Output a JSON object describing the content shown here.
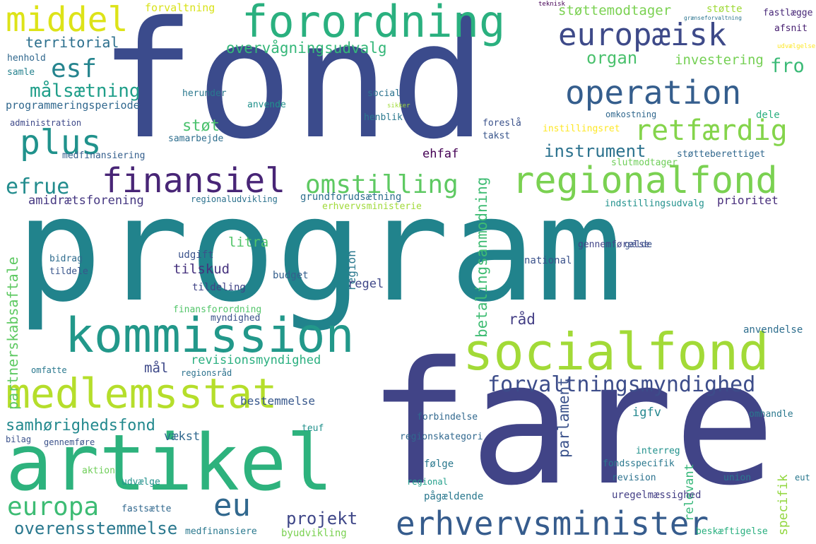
{
  "words": [
    {
      "text": "program",
      "color": "#21838c"
    },
    {
      "text": "fond",
      "color": "#3b4b8c"
    },
    {
      "text": "fare",
      "color": "#414487"
    },
    {
      "text": "artikel",
      "color": "#2db27d"
    },
    {
      "text": "socialfond",
      "color": "#a2da37"
    },
    {
      "text": "kommission",
      "color": "#22988a"
    },
    {
      "text": "forordning",
      "color": "#2ab07f"
    },
    {
      "text": "regionalfond",
      "color": "#7ad151"
    },
    {
      "text": "medlemsstat",
      "color": "#b5de2b"
    },
    {
      "text": "operation",
      "color": "#355e8d"
    },
    {
      "text": "europæisk",
      "color": "#3e4a89"
    },
    {
      "text": "erhvervsminister",
      "color": "#365c8d"
    },
    {
      "text": "finansiel",
      "color": "#482576"
    },
    {
      "text": "omstilling",
      "color": "#5ec962"
    },
    {
      "text": "retfærdig",
      "color": "#84d44b"
    },
    {
      "text": "plus",
      "color": "#20928c"
    },
    {
      "text": "middel",
      "color": "#dde318"
    },
    {
      "text": "eu",
      "color": "#31688e"
    },
    {
      "text": "forvaltningsmyndighed",
      "color": "#3d4d8a"
    },
    {
      "text": "europa",
      "color": "#3dbc74"
    },
    {
      "text": "esf",
      "color": "#25848e"
    },
    {
      "text": "efrue",
      "color": "#228c8d"
    },
    {
      "text": "målsætning",
      "color": "#1f9e89"
    },
    {
      "text": "overvågningsudvalg",
      "color": "#35b779"
    },
    {
      "text": "overensstemmelse",
      "color": "#2a788e"
    },
    {
      "text": "samhørighedsfond",
      "color": "#23898e"
    },
    {
      "text": "instrument",
      "color": "#2c728e"
    },
    {
      "text": "territorial",
      "color": "#2d708e"
    },
    {
      "text": "organ",
      "color": "#4ac16d"
    },
    {
      "text": "investering",
      "color": "#75d054"
    },
    {
      "text": "fro",
      "color": "#3aba76"
    },
    {
      "text": "projekt",
      "color": "#3f4788"
    },
    {
      "text": "partnerskabsaftale",
      "color": "#5ec962"
    },
    {
      "text": "betalingsanmodning",
      "color": "#3fbc73"
    },
    {
      "text": "revisionsmyndighed",
      "color": "#29af7f"
    },
    {
      "text": "støttemodtager",
      "color": "#7ad151"
    },
    {
      "text": "programmeringsperiode",
      "color": "#31688e"
    },
    {
      "text": "amidrætsforening",
      "color": "#453781"
    },
    {
      "text": "støt",
      "color": "#4ac16d"
    },
    {
      "text": "mål",
      "color": "#3e4989"
    },
    {
      "text": "grundforudsætning",
      "color": "#2e6f8e"
    },
    {
      "text": "prioritet",
      "color": "#472d7b"
    },
    {
      "text": "parlament",
      "color": "#3b528b"
    },
    {
      "text": "ehfaf",
      "color": "#440154"
    },
    {
      "text": "råd",
      "color": "#433e85"
    },
    {
      "text": "region",
      "color": "#2a788e"
    },
    {
      "text": "tilskud",
      "color": "#46327e"
    },
    {
      "text": "litra",
      "color": "#52c569"
    },
    {
      "text": "relevant",
      "color": "#35b779"
    },
    {
      "text": "specifik",
      "color": "#93d741"
    },
    {
      "text": "forvaltning",
      "color": "#d8e219"
    },
    {
      "text": "støtte",
      "color": "#a0da39"
    },
    {
      "text": "fastlægge",
      "color": "#482878"
    },
    {
      "text": "afsnit",
      "color": "#482071"
    },
    {
      "text": "teknisk",
      "color": "#440154"
    },
    {
      "text": "grænseforvaltning",
      "color": "#2b748e"
    },
    {
      "text": "udvælgelse",
      "color": "#fde725"
    },
    {
      "text": "henhold",
      "color": "#31688e"
    },
    {
      "text": "samle",
      "color": "#26828e"
    },
    {
      "text": "administration",
      "color": "#3e4989"
    },
    {
      "text": "medfinansiering",
      "color": "#355f8d"
    },
    {
      "text": "regel",
      "color": "#3f4788"
    },
    {
      "text": "national",
      "color": "#3b528b"
    },
    {
      "text": "anvendelse",
      "color": "#2e6e8e"
    },
    {
      "text": "bestemmelse",
      "color": "#38588c"
    },
    {
      "text": "igfv",
      "color": "#24878e"
    },
    {
      "text": "vækst",
      "color": "#31688e"
    },
    {
      "text": "budget",
      "color": "#355f8d"
    },
    {
      "text": "udgift",
      "color": "#3b528b"
    },
    {
      "text": "tildeling",
      "color": "#414487"
    },
    {
      "text": "bidrag",
      "color": "#2f6c8e"
    },
    {
      "text": "tildele",
      "color": "#39568c"
    },
    {
      "text": "anvende",
      "color": "#21918c"
    },
    {
      "text": "herunder",
      "color": "#2a788e"
    },
    {
      "text": "social",
      "color": "#2c728e"
    },
    {
      "text": "samarbejde",
      "color": "#2e6e8e"
    },
    {
      "text": "henblik",
      "color": "#2a788e"
    },
    {
      "text": "takst",
      "color": "#39568c"
    },
    {
      "text": "foreslå",
      "color": "#3b528b"
    },
    {
      "text": "omkostning",
      "color": "#31688e"
    },
    {
      "text": "dele",
      "color": "#29af7f"
    },
    {
      "text": "instillingsret",
      "color": "#fde725"
    },
    {
      "text": "støtteberettiget",
      "color": "#31688e"
    },
    {
      "text": "slutmodtager",
      "color": "#6ece58"
    },
    {
      "text": "indstillingsudvalg",
      "color": "#21918c"
    },
    {
      "text": "erhvervsministerie",
      "color": "#a0da39"
    },
    {
      "text": "regionaludvikling",
      "color": "#2c728e"
    },
    {
      "text": "finansforordning",
      "color": "#52c569"
    },
    {
      "text": "myndighed",
      "color": "#3b528b"
    },
    {
      "text": "gennemførelse",
      "color": "#414487"
    },
    {
      "text": "gælde",
      "color": "#3b528b"
    },
    {
      "text": "forbindelse",
      "color": "#31688e"
    },
    {
      "text": "regionskategori",
      "color": "#31688e"
    },
    {
      "text": "følge",
      "color": "#2a788e"
    },
    {
      "text": "regional",
      "color": "#1f9e89"
    },
    {
      "text": "pågældende",
      "color": "#2a788e"
    },
    {
      "text": "uregelmæssighed",
      "color": "#433e85"
    },
    {
      "text": "revision",
      "color": "#2c728e"
    },
    {
      "text": "fondsspecifik",
      "color": "#2a788e"
    },
    {
      "text": "interreg",
      "color": "#21918c"
    },
    {
      "text": "union",
      "color": "#2a788e"
    },
    {
      "text": "eut",
      "color": "#2a788e"
    },
    {
      "text": "beskæftigelse",
      "color": "#29af7f"
    },
    {
      "text": "byudvikling",
      "color": "#7ad151"
    },
    {
      "text": "medfinansiere",
      "color": "#2a788e"
    },
    {
      "text": "fastsætte",
      "color": "#31688e"
    },
    {
      "text": "udvælge",
      "color": "#21918c"
    },
    {
      "text": "aktion",
      "color": "#6ece58"
    },
    {
      "text": "gennemføre",
      "color": "#3b528b"
    },
    {
      "text": "bilag",
      "color": "#3b528b"
    },
    {
      "text": "omfatte",
      "color": "#2a788e"
    },
    {
      "text": "regionsråd",
      "color": "#2c728e"
    },
    {
      "text": "omhandle",
      "color": "#2a788e"
    },
    {
      "text": "teuf",
      "color": "#21918c"
    },
    {
      "text": "sikker",
      "color": "#a0da39"
    }
  ]
}
